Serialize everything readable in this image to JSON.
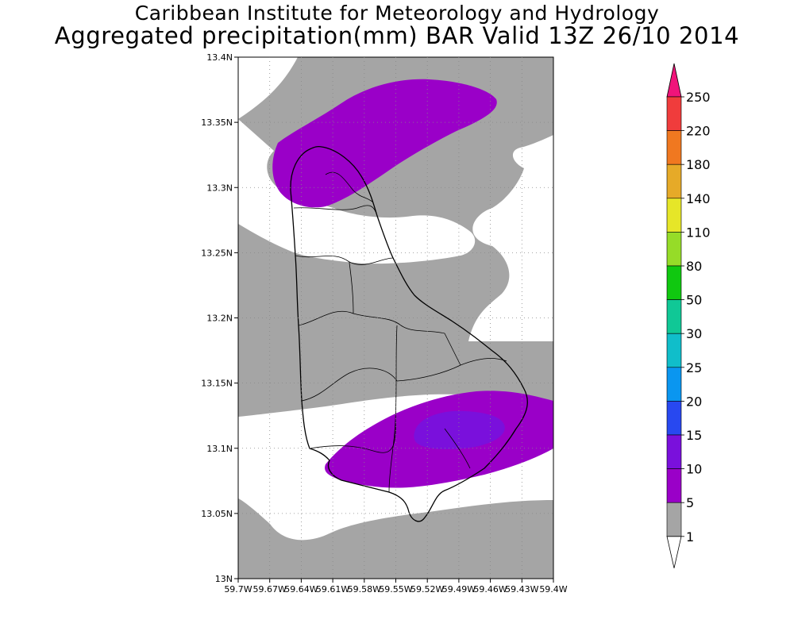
{
  "title": {
    "line1": "Caribbean Institute for Meteorology and Hydrology",
    "line2": "Aggregated precipitation(mm) BAR Valid 13Z 26/10 2014"
  },
  "map": {
    "lon_range": [
      -59.7,
      -59.4
    ],
    "lat_range": [
      13.0,
      13.4
    ],
    "lat_ticks": [
      "13N",
      "13.05N",
      "13.1N",
      "13.15N",
      "13.2N",
      "13.25N",
      "13.3N",
      "13.35N",
      "13.4N"
    ],
    "lon_ticks": [
      "59.7W",
      "59.67W",
      "59.64W",
      "59.61W",
      "59.58W",
      "59.55W",
      "59.52W",
      "59.49W",
      "59.46W",
      "59.43W",
      "59.4W"
    ],
    "grid": "dotted"
  },
  "colorbar": {
    "labels": [
      "1",
      "5",
      "10",
      "15",
      "20",
      "25",
      "30",
      "50",
      "80",
      "110",
      "140",
      "180",
      "220",
      "250"
    ],
    "colors": [
      "#a5a5a5",
      "#9a00c8",
      "#7a10dc",
      "#2848f0",
      "#0a96f0",
      "#10beca",
      "#10c896",
      "#10c810",
      "#96dc28",
      "#e6e628",
      "#e6aa28",
      "#f07820",
      "#f03c3c",
      "#f0147a"
    ],
    "bottom_color": "#ffffff"
  }
}
